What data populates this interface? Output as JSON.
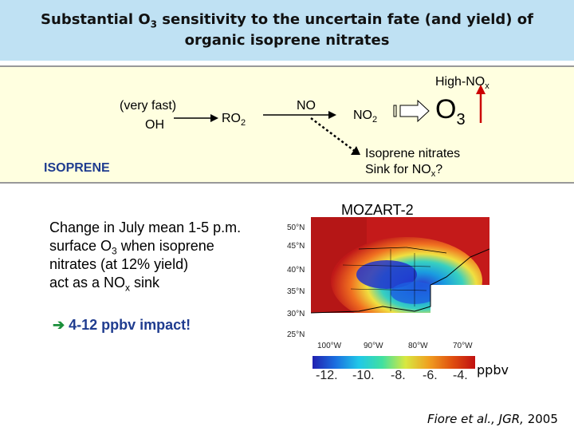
{
  "title": {
    "line1_pre": "Substantial O",
    "line1_sub": "3",
    "line1_post": " sensitivity to the uncertain fate (and yield) of",
    "line2": "organic isoprene nitrates"
  },
  "diagram": {
    "high_nox_pre": "High-NO",
    "high_nox_sub": "x",
    "very_fast": "(very fast)",
    "oh": "OH",
    "ro2_pre": "RO",
    "ro2_sub": "2",
    "no": "NO",
    "no2_pre": "NO",
    "no2_sub": "2",
    "o3_pre": "O",
    "o3_sub": "3",
    "isoprene": "ISOPRENE",
    "nitrates_line1": "Isoprene nitrates",
    "nitrates_line2_pre": "Sink for NO",
    "nitrates_line2_sub": "x",
    "nitrates_line2_post": "?"
  },
  "main": {
    "model_label": "MOZART-2",
    "desc1": "Change in July mean 1-5 p.m.",
    "desc2_pre": "surface O",
    "desc2_sub": "3",
    "desc2_post": " when isoprene",
    "desc3": "nitrates (at 12% yield)",
    "desc4_pre": "act as a NO",
    "desc4_sub": "x",
    "desc4_post": " sink",
    "impact": " 4-12 ppbv impact!"
  },
  "map": {
    "lat_labels": [
      "50°N",
      "45°N",
      "40°N",
      "35°N",
      "30°N",
      "25°N"
    ],
    "lon_labels": [
      "100°W",
      "90°W",
      "80°W",
      "70°W"
    ]
  },
  "colorbar": {
    "ticks": [
      "-12.",
      "-10.",
      "-8.",
      "-6.",
      "-4."
    ],
    "unit": "ppbv"
  },
  "citation": {
    "authors": "Fiore et al., JGR,",
    "year": " 2005"
  }
}
